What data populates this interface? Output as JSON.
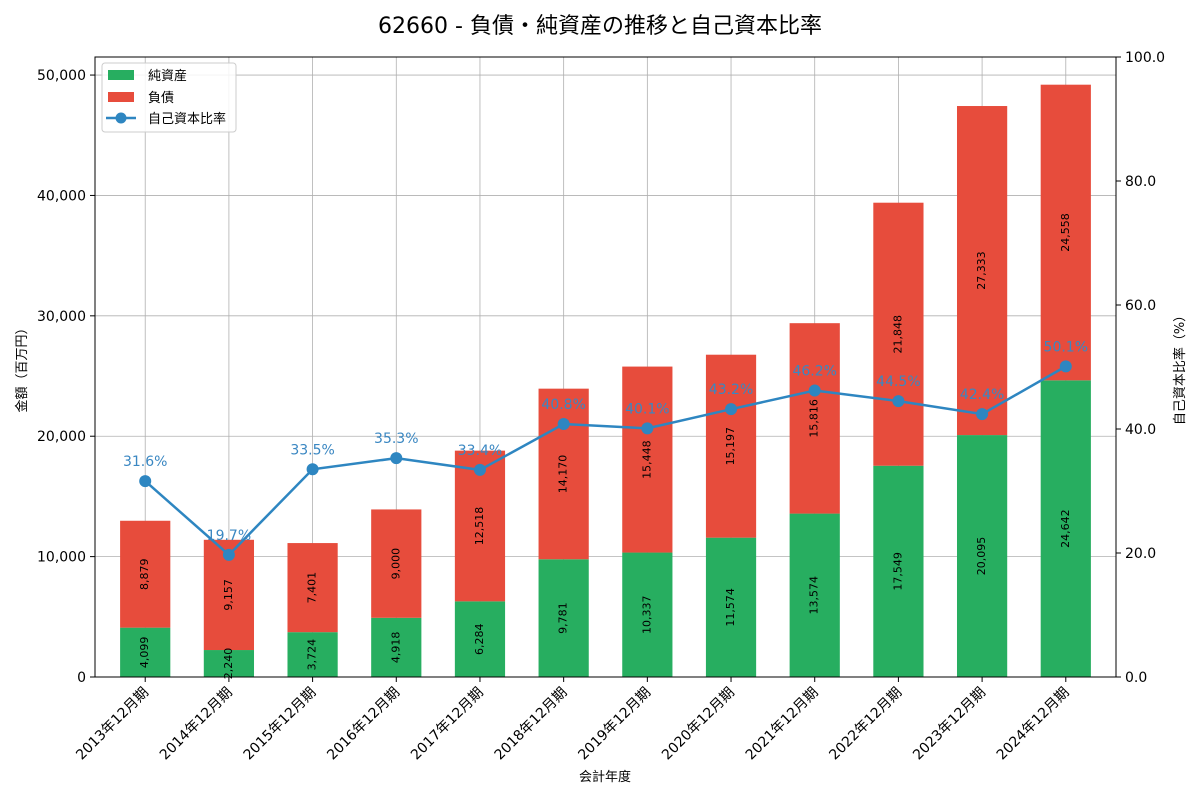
{
  "chart_data": {
    "type": "bar",
    "title": "62660 - 負債・純資産の推移と自己資本比率",
    "xlabel": "会計年度",
    "ylabel": "金額（百万円）",
    "y2label": "自己資本比率（%）",
    "ylim": [
      0,
      51500
    ],
    "y2lim": [
      0,
      100
    ],
    "yticks": [
      "0",
      "10,000",
      "20,000",
      "30,000",
      "40,000",
      "50,000"
    ],
    "yticks_values": [
      0,
      10000,
      20000,
      30000,
      40000,
      50000
    ],
    "y2ticks": [
      "0.0",
      "20.0",
      "40.0",
      "60.0",
      "80.0",
      "100.0"
    ],
    "y2ticks_values": [
      0,
      20,
      40,
      60,
      80,
      100
    ],
    "categories": [
      "2013年12月期",
      "2014年12月期",
      "2015年12月期",
      "2016年12月期",
      "2017年12月期",
      "2018年12月期",
      "2019年12月期",
      "2020年12月期",
      "2021年12月期",
      "2022年12月期",
      "2023年12月期",
      "2024年12月期"
    ],
    "series": [
      {
        "name": "純資産",
        "kind": "bar-stacked",
        "color": "#27ae60",
        "values": [
          4099,
          2240,
          3724,
          4918,
          6284,
          9781,
          10337,
          11574,
          13574,
          17549,
          20095,
          24642
        ],
        "labels": [
          "4,099",
          "2,240",
          "3,724",
          "4,918",
          "6,284",
          "9,781",
          "10,337",
          "11,574",
          "13,574",
          "17,549",
          "20,095",
          "24,642"
        ]
      },
      {
        "name": "負債",
        "kind": "bar-stacked",
        "color": "#e74c3c",
        "values": [
          8879,
          9157,
          7401,
          9000,
          12518,
          14170,
          15448,
          15197,
          15816,
          21848,
          27333,
          24558
        ],
        "labels": [
          "8,879",
          "9,157",
          "7,401",
          "9,000",
          "12,518",
          "14,170",
          "15,448",
          "15,197",
          "15,816",
          "21,848",
          "27,333",
          "24,558"
        ]
      },
      {
        "name": "自己資本比率",
        "kind": "line",
        "axis": "right",
        "color": "#2e86c1",
        "values": [
          31.6,
          19.7,
          33.5,
          35.3,
          33.4,
          40.8,
          40.1,
          43.2,
          46.2,
          44.5,
          42.4,
          50.1
        ],
        "labels": [
          "31.6%",
          "19.7%",
          "33.5%",
          "35.3%",
          "33.4%",
          "40.8%",
          "40.1%",
          "43.2%",
          "46.2%",
          "44.5%",
          "42.4%",
          "50.1%"
        ]
      }
    ],
    "grid": true,
    "legend_position": "top-left"
  }
}
